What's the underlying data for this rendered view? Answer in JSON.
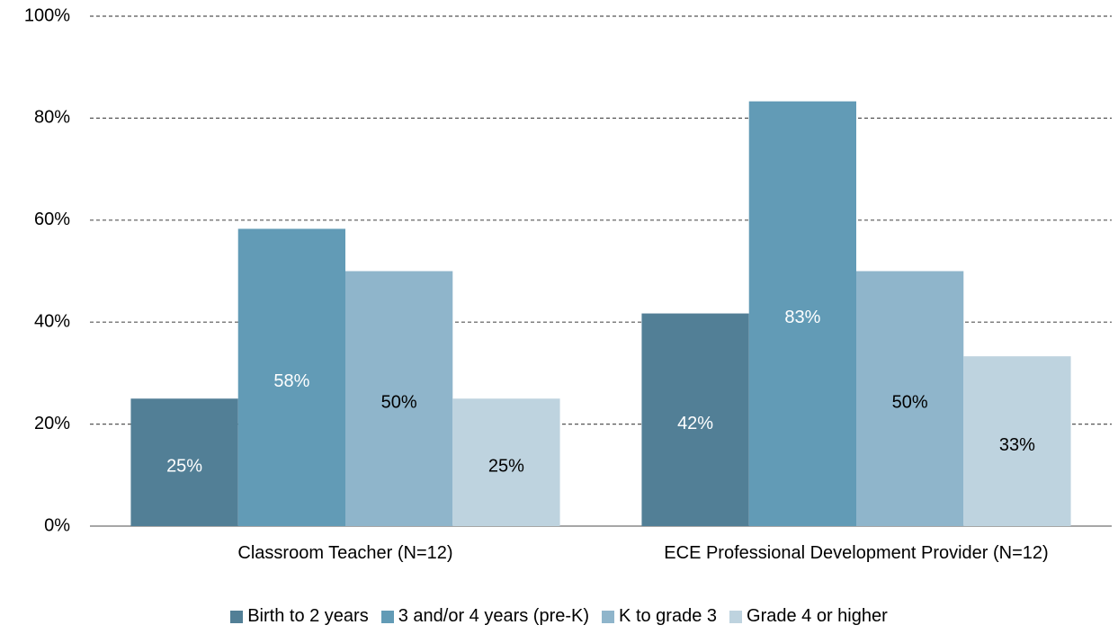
{
  "chart_data": {
    "type": "bar",
    "categories": [
      "Classroom Teacher (N=12)",
      "ECE Professional Development Provider (N=12)"
    ],
    "series": [
      {
        "name": "Birth to 2 years",
        "color": "#527f96",
        "label_color": "#ffffff",
        "values": [
          25,
          41.7
        ],
        "value_labels": [
          "25%",
          "42%"
        ]
      },
      {
        "name": "3 and/or 4 years (pre-K)",
        "color": "#629bb6",
        "label_color": "#ffffff",
        "values": [
          58.3,
          83.3
        ],
        "value_labels": [
          "58%",
          "83%"
        ]
      },
      {
        "name": "K to grade 3",
        "color": "#8fb5cb",
        "label_color": "#000000",
        "values": [
          50,
          50
        ],
        "value_labels": [
          "50%",
          "50%"
        ]
      },
      {
        "name": "Grade 4 or higher",
        "color": "#bed3df",
        "label_color": "#000000",
        "values": [
          25,
          33.3
        ],
        "value_labels": [
          "25%",
          "33%"
        ]
      }
    ],
    "ylim": [
      0,
      100
    ],
    "yticks": [
      {
        "value": 0,
        "label": "0%"
      },
      {
        "value": 20,
        "label": "20%"
      },
      {
        "value": 40,
        "label": "40%"
      },
      {
        "value": 60,
        "label": "60%"
      },
      {
        "value": 80,
        "label": "80%"
      },
      {
        "value": 100,
        "label": "100%"
      }
    ],
    "grid": true,
    "legend": "bottom"
  }
}
